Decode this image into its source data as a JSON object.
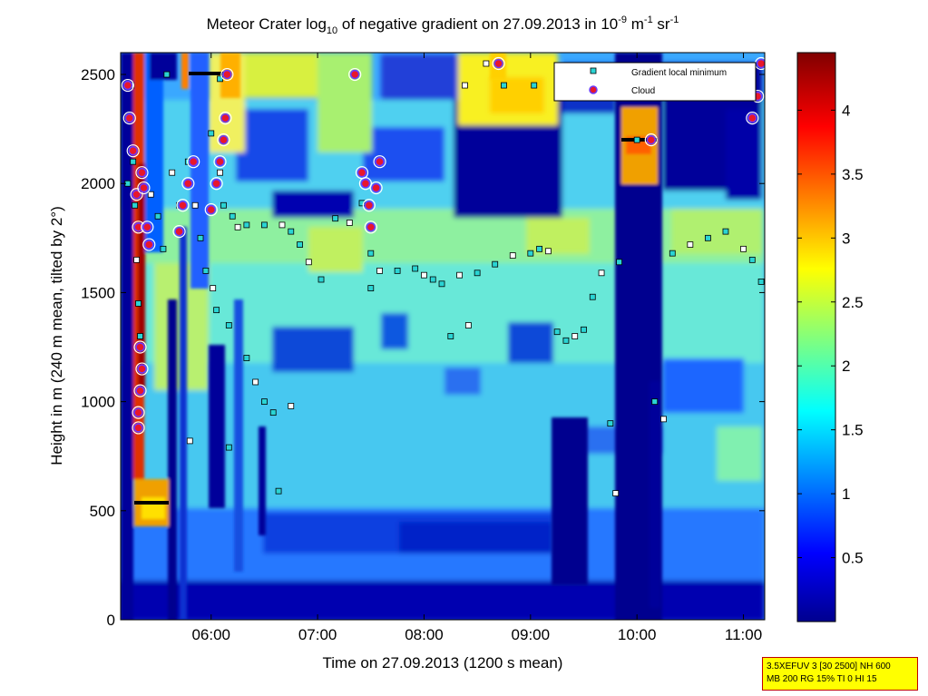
{
  "chart_data": {
    "type": "heatmap",
    "title_parts": {
      "pre": "Meteor Crater log",
      "sub": "10",
      "mid": " of negative gradient on 27.09.2013 in 10",
      "sup1": "-9",
      "mid2": " m",
      "sup2": "-1",
      "mid3": " sr",
      "sup3": "-1"
    },
    "xlabel": "Time on 27.09.2013 (1200 s mean)",
    "ylabel": "Height in m (240 m mean, tilted by 2°)",
    "xlim": [
      "05:09",
      "11:12"
    ],
    "ylim": [
      0,
      2600
    ],
    "x_ticks": [
      "06:00",
      "07:00",
      "08:00",
      "09:00",
      "10:00",
      "11:00"
    ],
    "y_ticks": [
      "0",
      "500",
      "1000",
      "1500",
      "2000",
      "2500"
    ],
    "colorbar": {
      "range": [
        0,
        4.45
      ],
      "ticks": [
        "0.5",
        "1",
        "1.5",
        "2",
        "2.5",
        "3",
        "3.5",
        "4"
      ],
      "colormap": "jet"
    },
    "legend": {
      "position": "top-right",
      "entries": [
        {
          "label": "Gradient local minimum",
          "marker": "square",
          "color": "#2ad4d4"
        },
        {
          "label": "Cloud",
          "marker": "circle",
          "color": "#e8172b"
        }
      ]
    },
    "gradient_minimum_series": [
      [
        "05:15",
        2450
      ],
      [
        "05:16",
        2100
      ],
      [
        "05:17",
        1900
      ],
      [
        "05:18",
        1650
      ],
      [
        "05:19",
        1450
      ],
      [
        "05:20",
        1300
      ],
      [
        "05:26",
        1950
      ],
      [
        "05:30",
        1850
      ],
      [
        "05:33",
        1700
      ],
      [
        "05:38",
        2050
      ],
      [
        "05:42",
        1900
      ],
      [
        "05:47",
        2100
      ],
      [
        "05:51",
        1900
      ],
      [
        "05:54",
        1750
      ],
      [
        "05:57",
        1600
      ],
      [
        "06:01",
        1520
      ],
      [
        "06:03",
        1420
      ],
      [
        "06:00",
        2230
      ],
      [
        "06:05",
        2050
      ],
      [
        "06:07",
        1900
      ],
      [
        "06:12",
        1850
      ],
      [
        "06:15",
        1800
      ],
      [
        "06:20",
        1810
      ],
      [
        "06:30",
        1810
      ],
      [
        "06:40",
        1810
      ],
      [
        "06:45",
        1780
      ],
      [
        "06:50",
        1720
      ],
      [
        "06:55",
        1640
      ],
      [
        "07:02",
        1560
      ],
      [
        "07:10",
        1840
      ],
      [
        "07:18",
        1820
      ],
      [
        "07:25",
        1910
      ],
      [
        "07:30",
        1680
      ],
      [
        "07:35",
        1600
      ],
      [
        "07:45",
        1600
      ],
      [
        "07:55",
        1610
      ],
      [
        "08:00",
        1580
      ],
      [
        "08:05",
        1560
      ],
      [
        "08:10",
        1540
      ],
      [
        "08:20",
        1580
      ],
      [
        "08:30",
        1590
      ],
      [
        "08:40",
        1630
      ],
      [
        "08:50",
        1670
      ],
      [
        "09:00",
        1680
      ],
      [
        "09:05",
        1700
      ],
      [
        "09:10",
        1690
      ],
      [
        "09:15",
        1320
      ],
      [
        "09:20",
        1280
      ],
      [
        "09:25",
        1300
      ],
      [
        "09:30",
        1330
      ],
      [
        "09:35",
        1480
      ],
      [
        "09:40",
        1590
      ],
      [
        "09:50",
        1640
      ],
      [
        "10:20",
        1680
      ],
      [
        "10:30",
        1720
      ],
      [
        "10:40",
        1750
      ],
      [
        "10:50",
        1780
      ],
      [
        "11:00",
        1700
      ],
      [
        "11:05",
        1650
      ],
      [
        "11:10",
        1550
      ],
      [
        "06:25",
        1090
      ],
      [
        "06:30",
        1000
      ],
      [
        "06:35",
        950
      ],
      [
        "06:45",
        980
      ],
      [
        "07:30",
        1520
      ],
      [
        "08:15",
        1300
      ],
      [
        "08:25",
        1350
      ],
      [
        "09:45",
        900
      ],
      [
        "10:10",
        1000
      ],
      [
        "10:15",
        920
      ],
      [
        "06:20",
        1200
      ],
      [
        "06:10",
        1350
      ],
      [
        "05:48",
        820
      ],
      [
        "06:10",
        790
      ],
      [
        "06:38",
        590
      ],
      [
        "09:48",
        580
      ],
      [
        "05:35",
        2500
      ],
      [
        "06:05",
        2480
      ],
      [
        "08:23",
        2450
      ],
      [
        "08:45",
        2450
      ],
      [
        "09:02",
        2450
      ],
      [
        "08:35",
        2550
      ],
      [
        "10:00",
        2200
      ],
      [
        "11:10",
        2550
      ],
      [
        "05:13",
        2300
      ],
      [
        "05:13",
        2000
      ]
    ],
    "cloud_series": [
      [
        "05:13",
        2450
      ],
      [
        "05:14",
        2300
      ],
      [
        "05:16",
        2150
      ],
      [
        "05:18",
        1950
      ],
      [
        "05:19",
        1800
      ],
      [
        "05:20",
        1250
      ],
      [
        "05:21",
        1150
      ],
      [
        "05:20",
        1050
      ],
      [
        "05:19",
        950
      ],
      [
        "05:19",
        880
      ],
      [
        "05:21",
        2050
      ],
      [
        "05:22",
        1980
      ],
      [
        "05:24",
        1800
      ],
      [
        "05:25",
        1720
      ],
      [
        "05:42",
        1780
      ],
      [
        "05:44",
        1900
      ],
      [
        "05:47",
        2000
      ],
      [
        "05:50",
        2100
      ],
      [
        "06:00",
        1880
      ],
      [
        "06:03",
        2000
      ],
      [
        "06:05",
        2100
      ],
      [
        "06:07",
        2200
      ],
      [
        "06:08",
        2300
      ],
      [
        "06:09",
        2500
      ],
      [
        "07:21",
        2500
      ],
      [
        "07:25",
        2050
      ],
      [
        "07:27",
        2000
      ],
      [
        "07:29",
        1900
      ],
      [
        "07:30",
        1800
      ],
      [
        "07:33",
        1980
      ],
      [
        "07:35",
        2100
      ],
      [
        "10:08",
        2200
      ],
      [
        "11:05",
        2300
      ],
      [
        "11:08",
        2400
      ],
      [
        "11:10",
        2550
      ],
      [
        "08:42",
        2550
      ]
    ]
  },
  "info_box": {
    "line1": "3.5XEFUV 3 [30 2500] NH 600",
    "line2": "MB 200 RG 15% TI 0 HI 15"
  }
}
